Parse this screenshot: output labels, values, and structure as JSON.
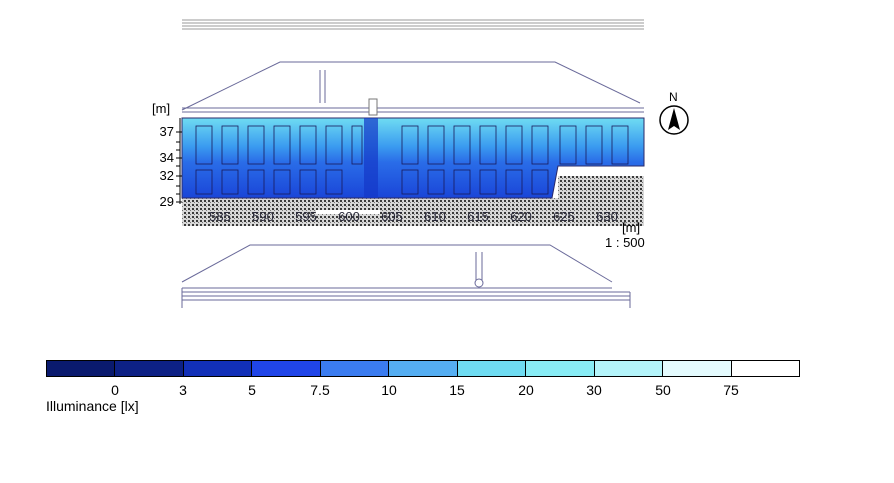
{
  "plan": {
    "y_unit": "[m]",
    "x_unit": "[m]",
    "scale": "1 : 500",
    "y_ticks": [
      "37",
      "34",
      "32",
      "29"
    ],
    "x_ticks": [
      "585",
      "590",
      "595",
      "600",
      "605",
      "610",
      "615",
      "620",
      "625",
      "630"
    ]
  },
  "compass": {
    "label": "N"
  },
  "legend": {
    "title": "Illuminance [lx]",
    "ticks": [
      "0",
      "3",
      "5",
      "7.5",
      "10",
      "15",
      "20",
      "30",
      "50",
      "75"
    ],
    "colors": [
      "#0a1a6e",
      "#0d2185",
      "#1230b8",
      "#2045e8",
      "#3b7cf0",
      "#55aef2",
      "#6fdcf2",
      "#88ecf5",
      "#b4f4fa",
      "#e4fbfe",
      "#ffffff"
    ]
  }
}
